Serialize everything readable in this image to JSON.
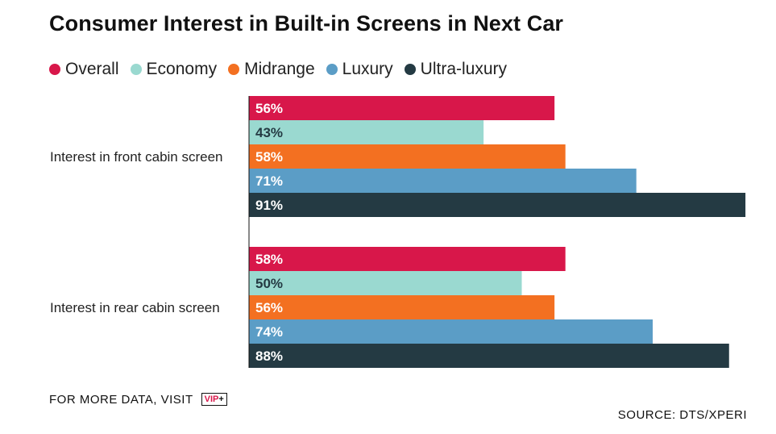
{
  "chart_data": {
    "type": "bar",
    "orientation": "horizontal",
    "title": "Consumer Interest in Built-in Screens in Next Car",
    "categories": [
      "Interest in front cabin screen",
      "Interest in rear cabin screen"
    ],
    "series": [
      {
        "name": "Overall",
        "color": "#d8174a",
        "values": [
          56,
          58
        ],
        "labels": [
          "56%",
          "58%"
        ]
      },
      {
        "name": "Economy",
        "color": "#9ad9d0",
        "values": [
          43,
          50
        ],
        "labels": [
          "43%",
          "50%"
        ]
      },
      {
        "name": "Midrange",
        "color": "#f37021",
        "values": [
          58,
          56
        ],
        "labels": [
          "58%",
          "56%"
        ]
      },
      {
        "name": "Luxury",
        "color": "#5b9dc6",
        "values": [
          71,
          74
        ],
        "labels": [
          "71%",
          "74%"
        ]
      },
      {
        "name": "Ultra-luxury",
        "color": "#243a43",
        "values": [
          91,
          88
        ],
        "labels": [
          "91%",
          "88%"
        ]
      }
    ],
    "xlim": [
      0,
      100
    ],
    "grid": false,
    "legend_position": "top-left"
  },
  "footer": {
    "visit_text": "FOR MORE DATA, VISIT",
    "logo_text_a": "VIP",
    "logo_text_b": "+",
    "source": "SOURCE: DTS/XPERI"
  }
}
